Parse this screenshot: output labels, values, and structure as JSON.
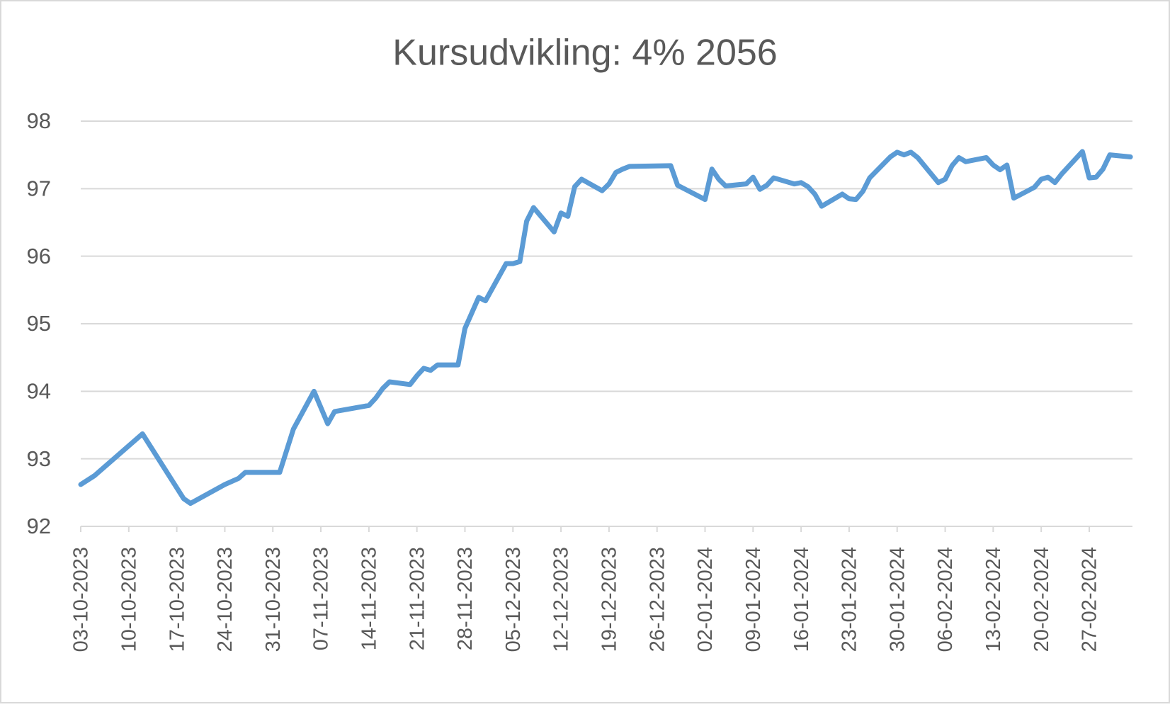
{
  "chart_data": {
    "type": "line",
    "title": "Kursudvikling: 4% 2056",
    "x": [
      "2023-10-03",
      "2023-10-05",
      "2023-10-12",
      "2023-10-18",
      "2023-10-19",
      "2023-10-24",
      "2023-10-26",
      "2023-10-27",
      "2023-11-01",
      "2023-11-03",
      "2023-11-06",
      "2023-11-08",
      "2023-11-09",
      "2023-11-14",
      "2023-11-15",
      "2023-11-16",
      "2023-11-17",
      "2023-11-20",
      "2023-11-21",
      "2023-11-22",
      "2023-11-23",
      "2023-11-24",
      "2023-11-27",
      "2023-11-28",
      "2023-11-30",
      "2023-12-01",
      "2023-12-04",
      "2023-12-05",
      "2023-12-06",
      "2023-12-07",
      "2023-12-08",
      "2023-12-11",
      "2023-12-12",
      "2023-12-13",
      "2023-12-14",
      "2023-12-15",
      "2023-12-18",
      "2023-12-19",
      "2023-12-20",
      "2023-12-21",
      "2023-12-22",
      "2023-12-28",
      "2023-12-29",
      "2024-01-02",
      "2024-01-03",
      "2024-01-04",
      "2024-01-05",
      "2024-01-08",
      "2024-01-09",
      "2024-01-10",
      "2024-01-11",
      "2024-01-12",
      "2024-01-15",
      "2024-01-16",
      "2024-01-17",
      "2024-01-18",
      "2024-01-19",
      "2024-01-22",
      "2024-01-23",
      "2024-01-24",
      "2024-01-25",
      "2024-01-26",
      "2024-01-29",
      "2024-01-30",
      "2024-01-31",
      "2024-02-01",
      "2024-02-02",
      "2024-02-05",
      "2024-02-06",
      "2024-02-07",
      "2024-02-08",
      "2024-02-09",
      "2024-02-12",
      "2024-02-13",
      "2024-02-14",
      "2024-02-15",
      "2024-02-16",
      "2024-02-19",
      "2024-02-20",
      "2024-02-21",
      "2024-02-22",
      "2024-02-23",
      "2024-02-26",
      "2024-02-27",
      "2024-02-28",
      "2024-02-29",
      "2024-03-01",
      "2024-03-04"
    ],
    "series": [
      {
        "color": "#5b9bd5",
        "values": [
          92.62,
          92.75,
          93.37,
          92.41,
          92.34,
          92.62,
          92.71,
          92.8,
          92.8,
          93.44,
          94.0,
          93.52,
          93.7,
          93.79,
          93.9,
          94.04,
          94.14,
          94.1,
          94.23,
          94.34,
          94.31,
          94.39,
          94.39,
          94.93,
          95.39,
          95.34,
          95.89,
          95.89,
          95.92,
          96.52,
          96.72,
          96.36,
          96.64,
          96.59,
          97.03,
          97.14,
          96.97,
          97.07,
          97.24,
          97.29,
          97.33,
          97.34,
          97.05,
          96.84,
          97.29,
          97.14,
          97.04,
          97.07,
          97.17,
          96.99,
          97.05,
          97.16,
          97.07,
          97.09,
          97.03,
          96.92,
          96.74,
          96.92,
          96.85,
          96.84,
          96.96,
          97.16,
          97.47,
          97.54,
          97.5,
          97.54,
          97.46,
          97.09,
          97.14,
          97.34,
          97.46,
          97.4,
          97.46,
          97.35,
          97.28,
          97.35,
          96.86,
          97.02,
          97.14,
          97.17,
          97.09,
          97.22,
          97.55,
          97.16,
          97.17,
          97.29,
          97.5,
          97.47
        ]
      }
    ],
    "xlim": [
      "2023-10-03",
      "2024-03-04"
    ],
    "xticks": [
      {
        "value": "2023-10-03",
        "label": "03-10-2023"
      },
      {
        "value": "2023-10-10",
        "label": "10-10-2023"
      },
      {
        "value": "2023-10-17",
        "label": "17-10-2023"
      },
      {
        "value": "2023-10-24",
        "label": "24-10-2023"
      },
      {
        "value": "2023-10-31",
        "label": "31-10-2023"
      },
      {
        "value": "2023-11-07",
        "label": "07-11-2023"
      },
      {
        "value": "2023-11-14",
        "label": "14-11-2023"
      },
      {
        "value": "2023-11-21",
        "label": "21-11-2023"
      },
      {
        "value": "2023-11-28",
        "label": "28-11-2023"
      },
      {
        "value": "2023-12-05",
        "label": "05-12-2023"
      },
      {
        "value": "2023-12-12",
        "label": "12-12-2023"
      },
      {
        "value": "2023-12-19",
        "label": "19-12-2023"
      },
      {
        "value": "2023-12-26",
        "label": "26-12-2023"
      },
      {
        "value": "2024-01-02",
        "label": "02-01-2024"
      },
      {
        "value": "2024-01-09",
        "label": "09-01-2024"
      },
      {
        "value": "2024-01-16",
        "label": "16-01-2024"
      },
      {
        "value": "2024-01-23",
        "label": "23-01-2024"
      },
      {
        "value": "2024-01-30",
        "label": "30-01-2024"
      },
      {
        "value": "2024-02-06",
        "label": "06-02-2024"
      },
      {
        "value": "2024-02-13",
        "label": "13-02-2024"
      },
      {
        "value": "2024-02-20",
        "label": "20-02-2024"
      },
      {
        "value": "2024-02-27",
        "label": "27-02-2024"
      }
    ],
    "ylim": [
      92,
      98
    ],
    "yticks": [
      92,
      93,
      94,
      95,
      96,
      97,
      98
    ],
    "grid": true
  }
}
